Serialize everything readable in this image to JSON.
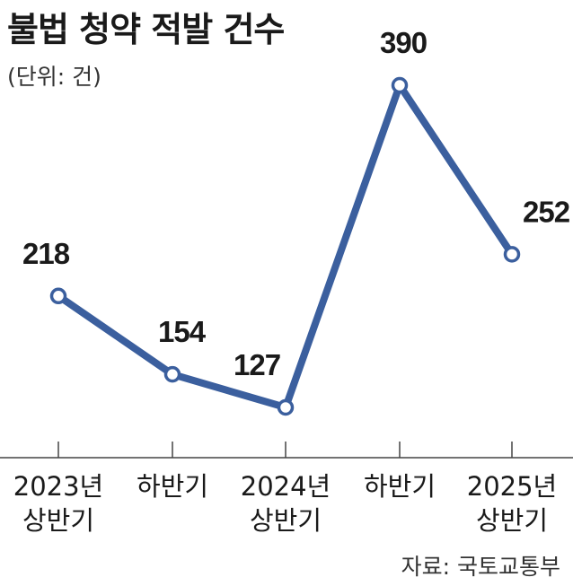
{
  "title": "불법 청약 적발 건수",
  "unit_note": "(단위: 건)",
  "source": "자료: 국토교통부",
  "chart_data": {
    "type": "line",
    "title": "불법 청약 적발 건수",
    "categories": [
      [
        "2023년",
        "상반기"
      ],
      [
        "하반기"
      ],
      [
        "2024년",
        "상반기"
      ],
      [
        "하반기"
      ],
      [
        "2025년",
        "상반기"
      ]
    ],
    "values": [
      218,
      154,
      127,
      390,
      252
    ],
    "data_labels": [
      "218",
      "154",
      "127",
      "390",
      "252"
    ],
    "xlabel": "",
    "ylabel": "",
    "ylim": [
      127,
      390
    ],
    "grid": false,
    "colors": {
      "line": "#3b5f9e",
      "marker_fill": "#ffffff",
      "axis": "#444444"
    }
  }
}
